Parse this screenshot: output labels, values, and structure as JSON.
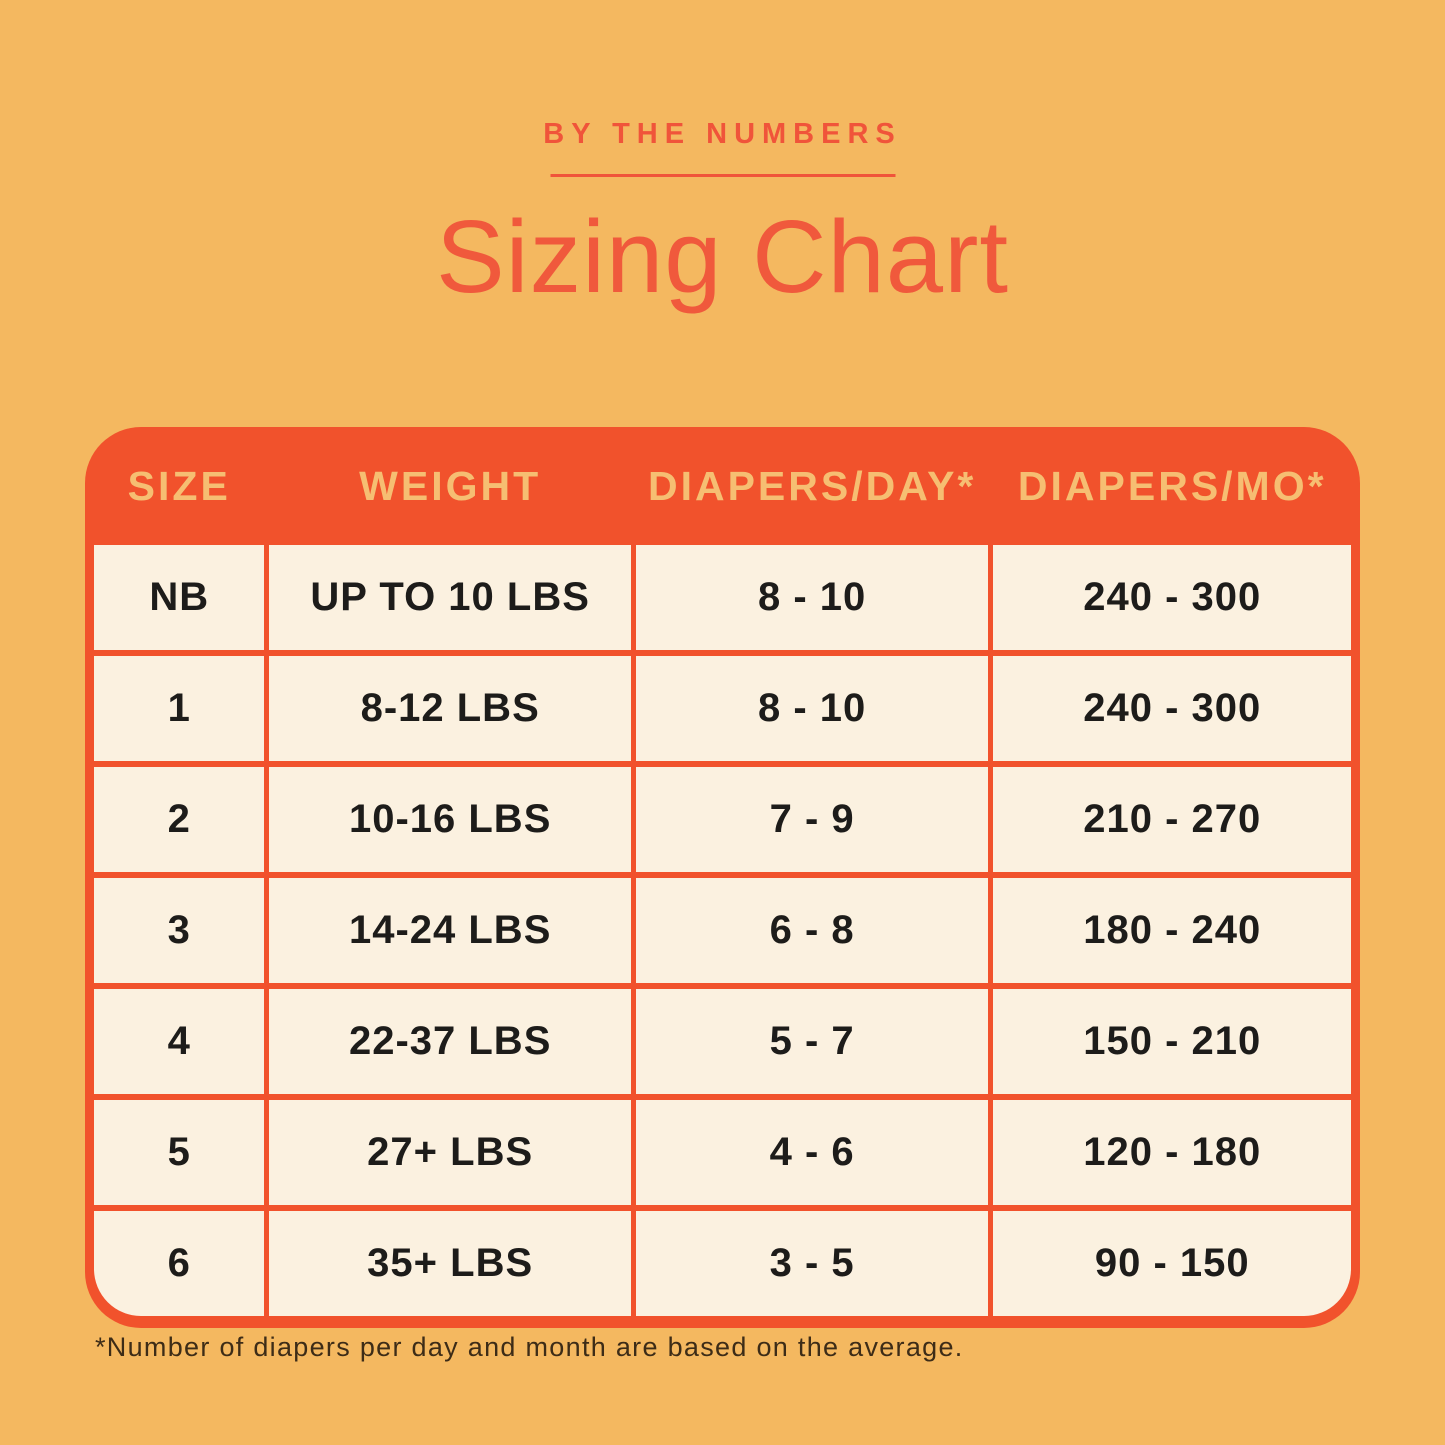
{
  "page": {
    "eyebrow": "BY THE NUMBERS",
    "title": "Sizing Chart",
    "footnote": "*Number of diapers per day and month are based on the average."
  },
  "colors": {
    "background": "#F4B860",
    "accent_orange_red": "#F1522C",
    "title_text": "#F0593C",
    "header_text_gold": "#F6BE72",
    "cell_background_cream": "#FBF1E0",
    "cell_text": "#1D1C1A",
    "footnote_text": "#3D2C17"
  },
  "chart_data": {
    "type": "table",
    "title": "Sizing Chart",
    "subtitle": "BY THE NUMBERS",
    "columns": [
      "SIZE",
      "WEIGHT",
      "DIAPERS/DAY*",
      "DIAPERS/MO*"
    ],
    "rows": [
      [
        "NB",
        "UP TO 10 LBS",
        "8 - 10",
        "240 - 300"
      ],
      [
        "1",
        "8-12 LBS",
        "8 - 10",
        "240 - 300"
      ],
      [
        "2",
        "10-16 LBS",
        "7 - 9",
        "210 - 270"
      ],
      [
        "3",
        "14-24 LBS",
        "6 - 8",
        "180 - 240"
      ],
      [
        "4",
        "22-37 LBS",
        "5 - 7",
        "150 - 210"
      ],
      [
        "5",
        "27+ LBS",
        "4 - 6",
        "120 - 180"
      ],
      [
        "6",
        "35+ LBS",
        "3 - 5",
        "90 - 150"
      ]
    ],
    "footnote": "*Number of diapers per day and month are based on the average.",
    "layout": {
      "header_background": "#F1522C",
      "grid": "on",
      "corner_radius": "rounded"
    }
  }
}
